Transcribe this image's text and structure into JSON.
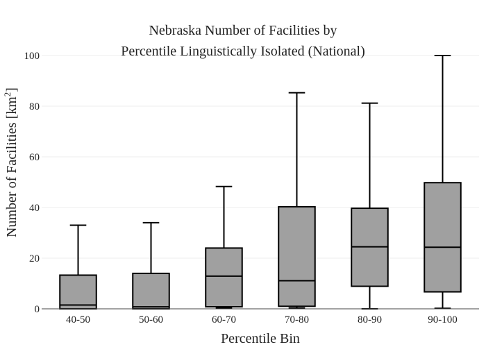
{
  "chart_data": {
    "type": "box",
    "title_lines": [
      "Nebraska Number of Facilities by",
      "Percentile Linguistically Isolated (National)"
    ],
    "xlabel": "Percentile Bin",
    "ylabel_main": "Number of Facilities  [km",
    "ylabel_sup": "2",
    "ylabel_end": "]",
    "ylim": [
      0,
      100
    ],
    "yticks": [
      0,
      20,
      40,
      60,
      80,
      100
    ],
    "grid": true,
    "box_color": "#a0a0a0",
    "categories": [
      "40-50",
      "50-60",
      "60-70",
      "70-80",
      "80-90",
      "90-100"
    ],
    "boxes": [
      {
        "min": 0,
        "q1": 0,
        "median": 1.5,
        "q3": 13.3,
        "max": 33
      },
      {
        "min": 0,
        "q1": 0,
        "median": 0.8,
        "q3": 14,
        "max": 34
      },
      {
        "min": 0.3,
        "q1": 0.8,
        "median": 12.9,
        "q3": 24,
        "max": 48.3
      },
      {
        "min": 0.3,
        "q1": 1,
        "median": 11.1,
        "q3": 40.3,
        "max": 85.3
      },
      {
        "min": 0,
        "q1": 8.9,
        "median": 24.5,
        "q3": 39.7,
        "max": 81.2
      },
      {
        "min": 0.2,
        "q1": 6.7,
        "median": 24.3,
        "q3": 49.8,
        "max": 100
      }
    ]
  }
}
